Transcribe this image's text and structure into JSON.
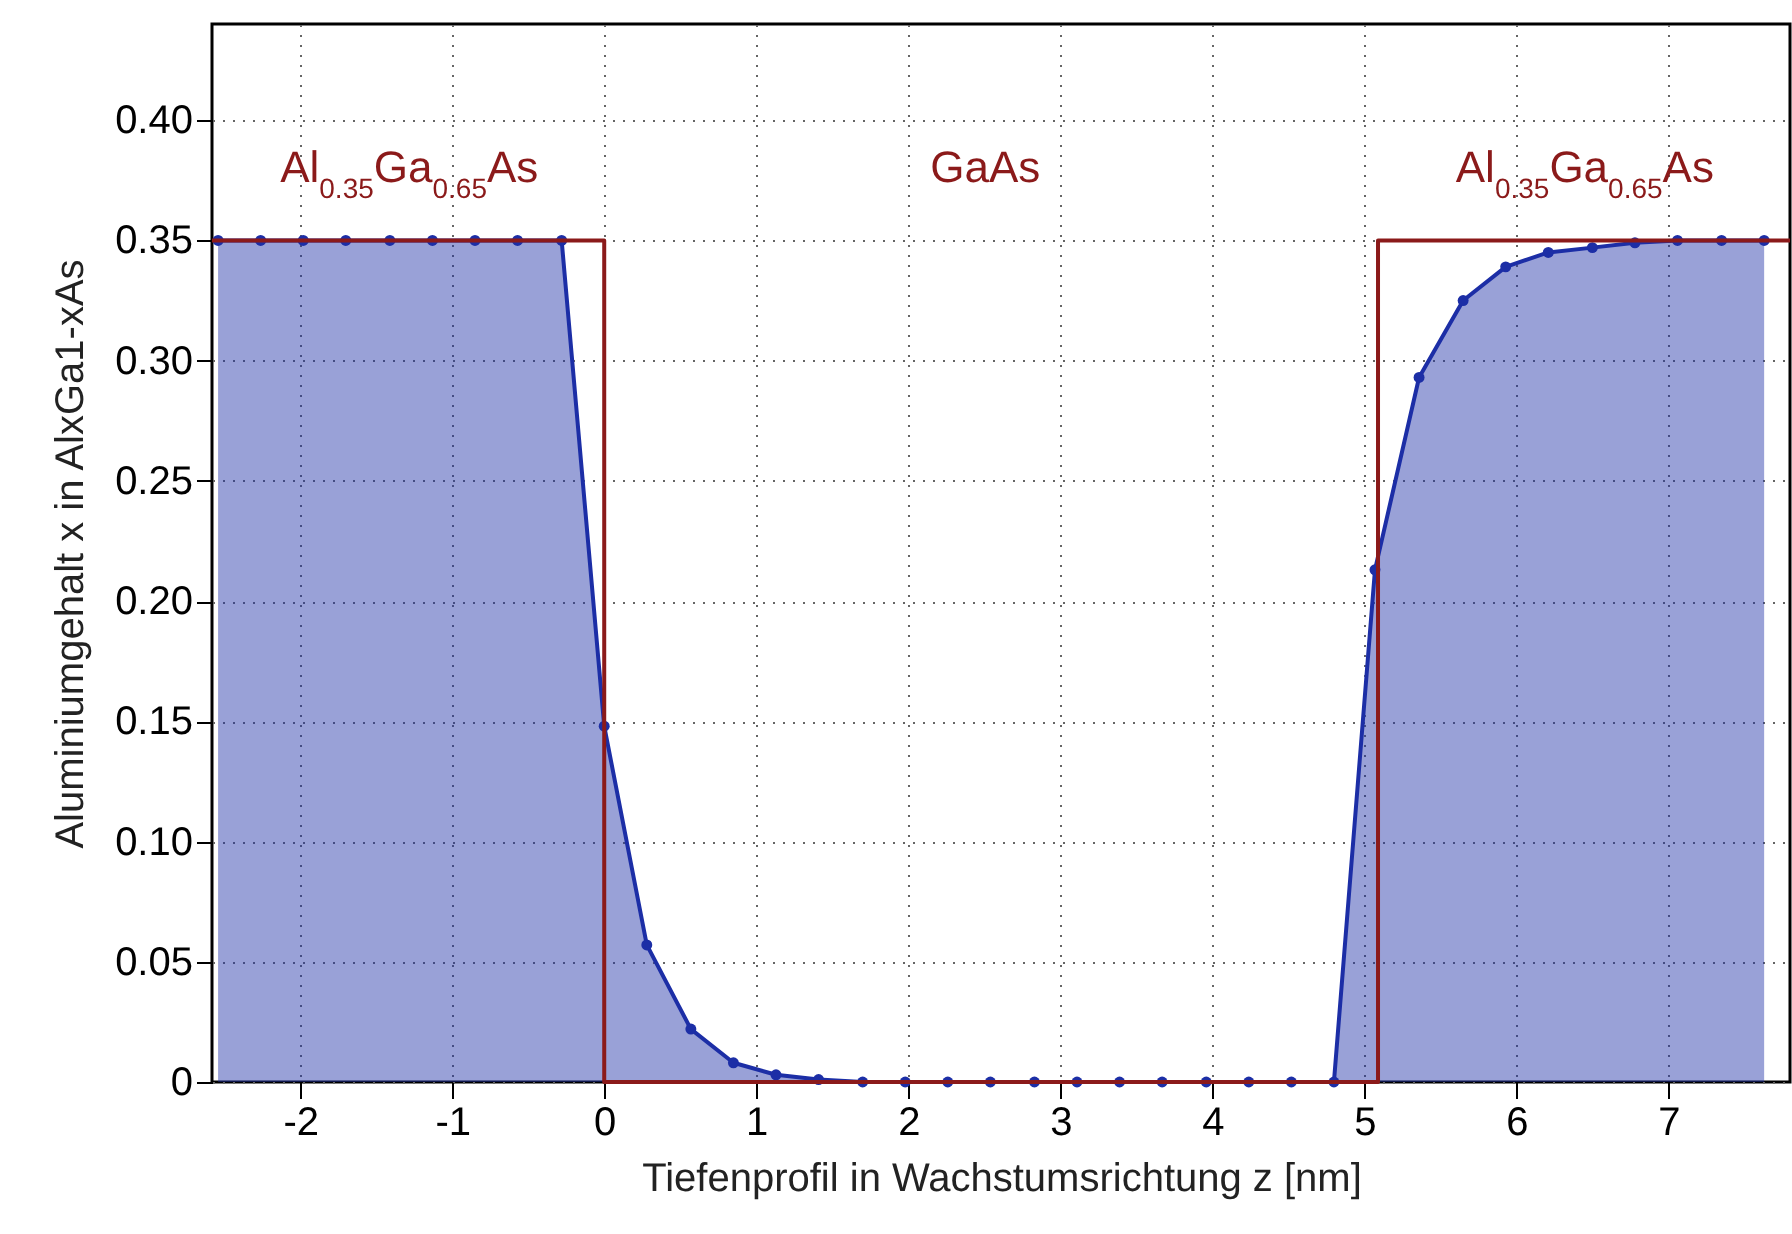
{
  "chart_data": {
    "type": "area",
    "xlabel": "Tiefenprofil in Wachstumsrichtung z [nm]",
    "ylabel": "Aluminiumgehalt x in AlxGa1-xAs",
    "xlim": [
      -2.58,
      7.8
    ],
    "ylim": [
      0,
      0.44
    ],
    "xticks": [
      -2,
      -1,
      0,
      1,
      2,
      3,
      4,
      5,
      6,
      7
    ],
    "yticks": [
      {
        "value": 0,
        "label": "0"
      },
      {
        "value": 0.05,
        "label": "0.05"
      },
      {
        "value": 0.1,
        "label": "0.10"
      },
      {
        "value": 0.15,
        "label": "0.15"
      },
      {
        "value": 0.2,
        "label": "0.20"
      },
      {
        "value": 0.25,
        "label": "0.25"
      },
      {
        "value": 0.3,
        "label": "0.30"
      },
      {
        "value": 0.35,
        "label": "0.35"
      },
      {
        "value": 0.4,
        "label": "0.40"
      }
    ],
    "grid": true,
    "line_style": "solid",
    "series": [
      {
        "color": "#1c2ea6",
        "marker": "circle",
        "x": [
          -2.54,
          -2.26,
          -1.98,
          -1.7,
          -1.41,
          -1.13,
          -0.85,
          -0.57,
          -0.28,
          0,
          0.28,
          0.57,
          0.85,
          1.13,
          1.41,
          1.7,
          1.98,
          2.26,
          2.54,
          2.83,
          3.11,
          3.39,
          3.67,
          3.96,
          4.24,
          4.52,
          4.8,
          5.07,
          5.36,
          5.65,
          5.93,
          6.21,
          6.5,
          6.78,
          7.06,
          7.35,
          7.63
        ],
        "values": [
          0.35,
          0.35,
          0.35,
          0.35,
          0.35,
          0.35,
          0.35,
          0.35,
          0.35,
          0.148,
          0.057,
          0.022,
          0.008,
          0.003,
          0.001,
          0,
          0,
          0,
          0,
          0,
          0,
          0,
          0,
          0,
          0,
          0,
          0,
          0.213,
          0.293,
          0.325,
          0.339,
          0.345,
          0.347,
          0.349,
          0.35,
          0.35,
          0.35
        ]
      },
      {
        "type": "step",
        "color": "#8b1a1a",
        "x": [
          -2.58,
          0,
          5.09,
          7.8
        ],
        "values": [
          0.35,
          0,
          0.35,
          0.35
        ]
      }
    ],
    "annotations": [
      "Al$_{0.35}$Ga$_{0.65}$As",
      "GaAs",
      "Al$_{0.35}$Ga$_{0.65}$As"
    ]
  }
}
